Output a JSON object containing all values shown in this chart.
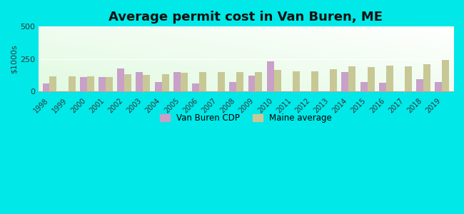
{
  "title": "Average permit cost in Van Buren, ME",
  "ylabel": "$1000s",
  "years": [
    1998,
    1999,
    2000,
    2001,
    2002,
    2003,
    2004,
    2005,
    2006,
    2007,
    2008,
    2009,
    2010,
    2011,
    2012,
    2013,
    2014,
    2015,
    2016,
    2017,
    2018,
    2019
  ],
  "van_buren": [
    60,
    null,
    110,
    110,
    175,
    150,
    75,
    150,
    60,
    null,
    75,
    125,
    235,
    null,
    null,
    null,
    150,
    75,
    70,
    null,
    95,
    75
  ],
  "maine_avg": [
    115,
    115,
    115,
    110,
    135,
    130,
    135,
    145,
    148,
    150,
    150,
    150,
    165,
    155,
    158,
    170,
    195,
    190,
    200,
    195,
    210,
    242
  ],
  "van_buren_color": "#c8a0c8",
  "maine_avg_color": "#c8c896",
  "ylim": [
    0,
    500
  ],
  "yticks": [
    0,
    250,
    500
  ],
  "outer_bg": "#00e8e8",
  "bar_width": 0.38,
  "title_fontsize": 13,
  "legend_labels": [
    "Van Buren CDP",
    "Maine average"
  ],
  "plot_bg_top": "#ffffff",
  "plot_bg_bottom": "#e0f0e0"
}
